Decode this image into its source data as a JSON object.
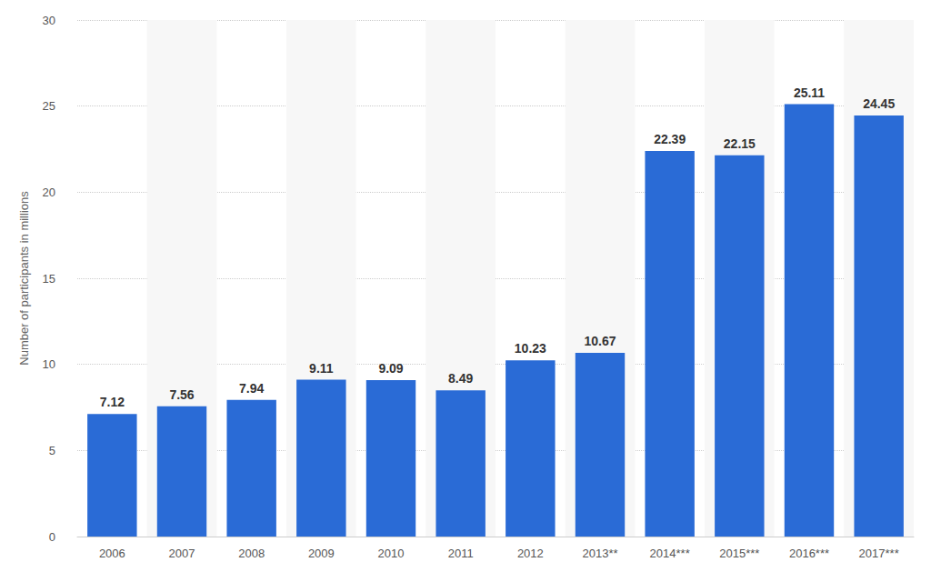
{
  "chart_data": {
    "type": "bar",
    "y_label": "Number of participants in millions",
    "categories": [
      "2006",
      "2007",
      "2008",
      "2009",
      "2010",
      "2011",
      "2012",
      "2013**",
      "2014***",
      "2015***",
      "2016***",
      "2017***"
    ],
    "values": [
      7.12,
      7.56,
      7.94,
      9.11,
      9.09,
      8.49,
      10.23,
      10.67,
      22.39,
      22.15,
      25.11,
      24.45
    ],
    "color": "#2a6bd6",
    "ylim": [
      0,
      30
    ],
    "yticks": [
      0,
      5,
      10,
      15,
      20,
      25,
      30
    ],
    "grid": true,
    "data_labels": true
  }
}
